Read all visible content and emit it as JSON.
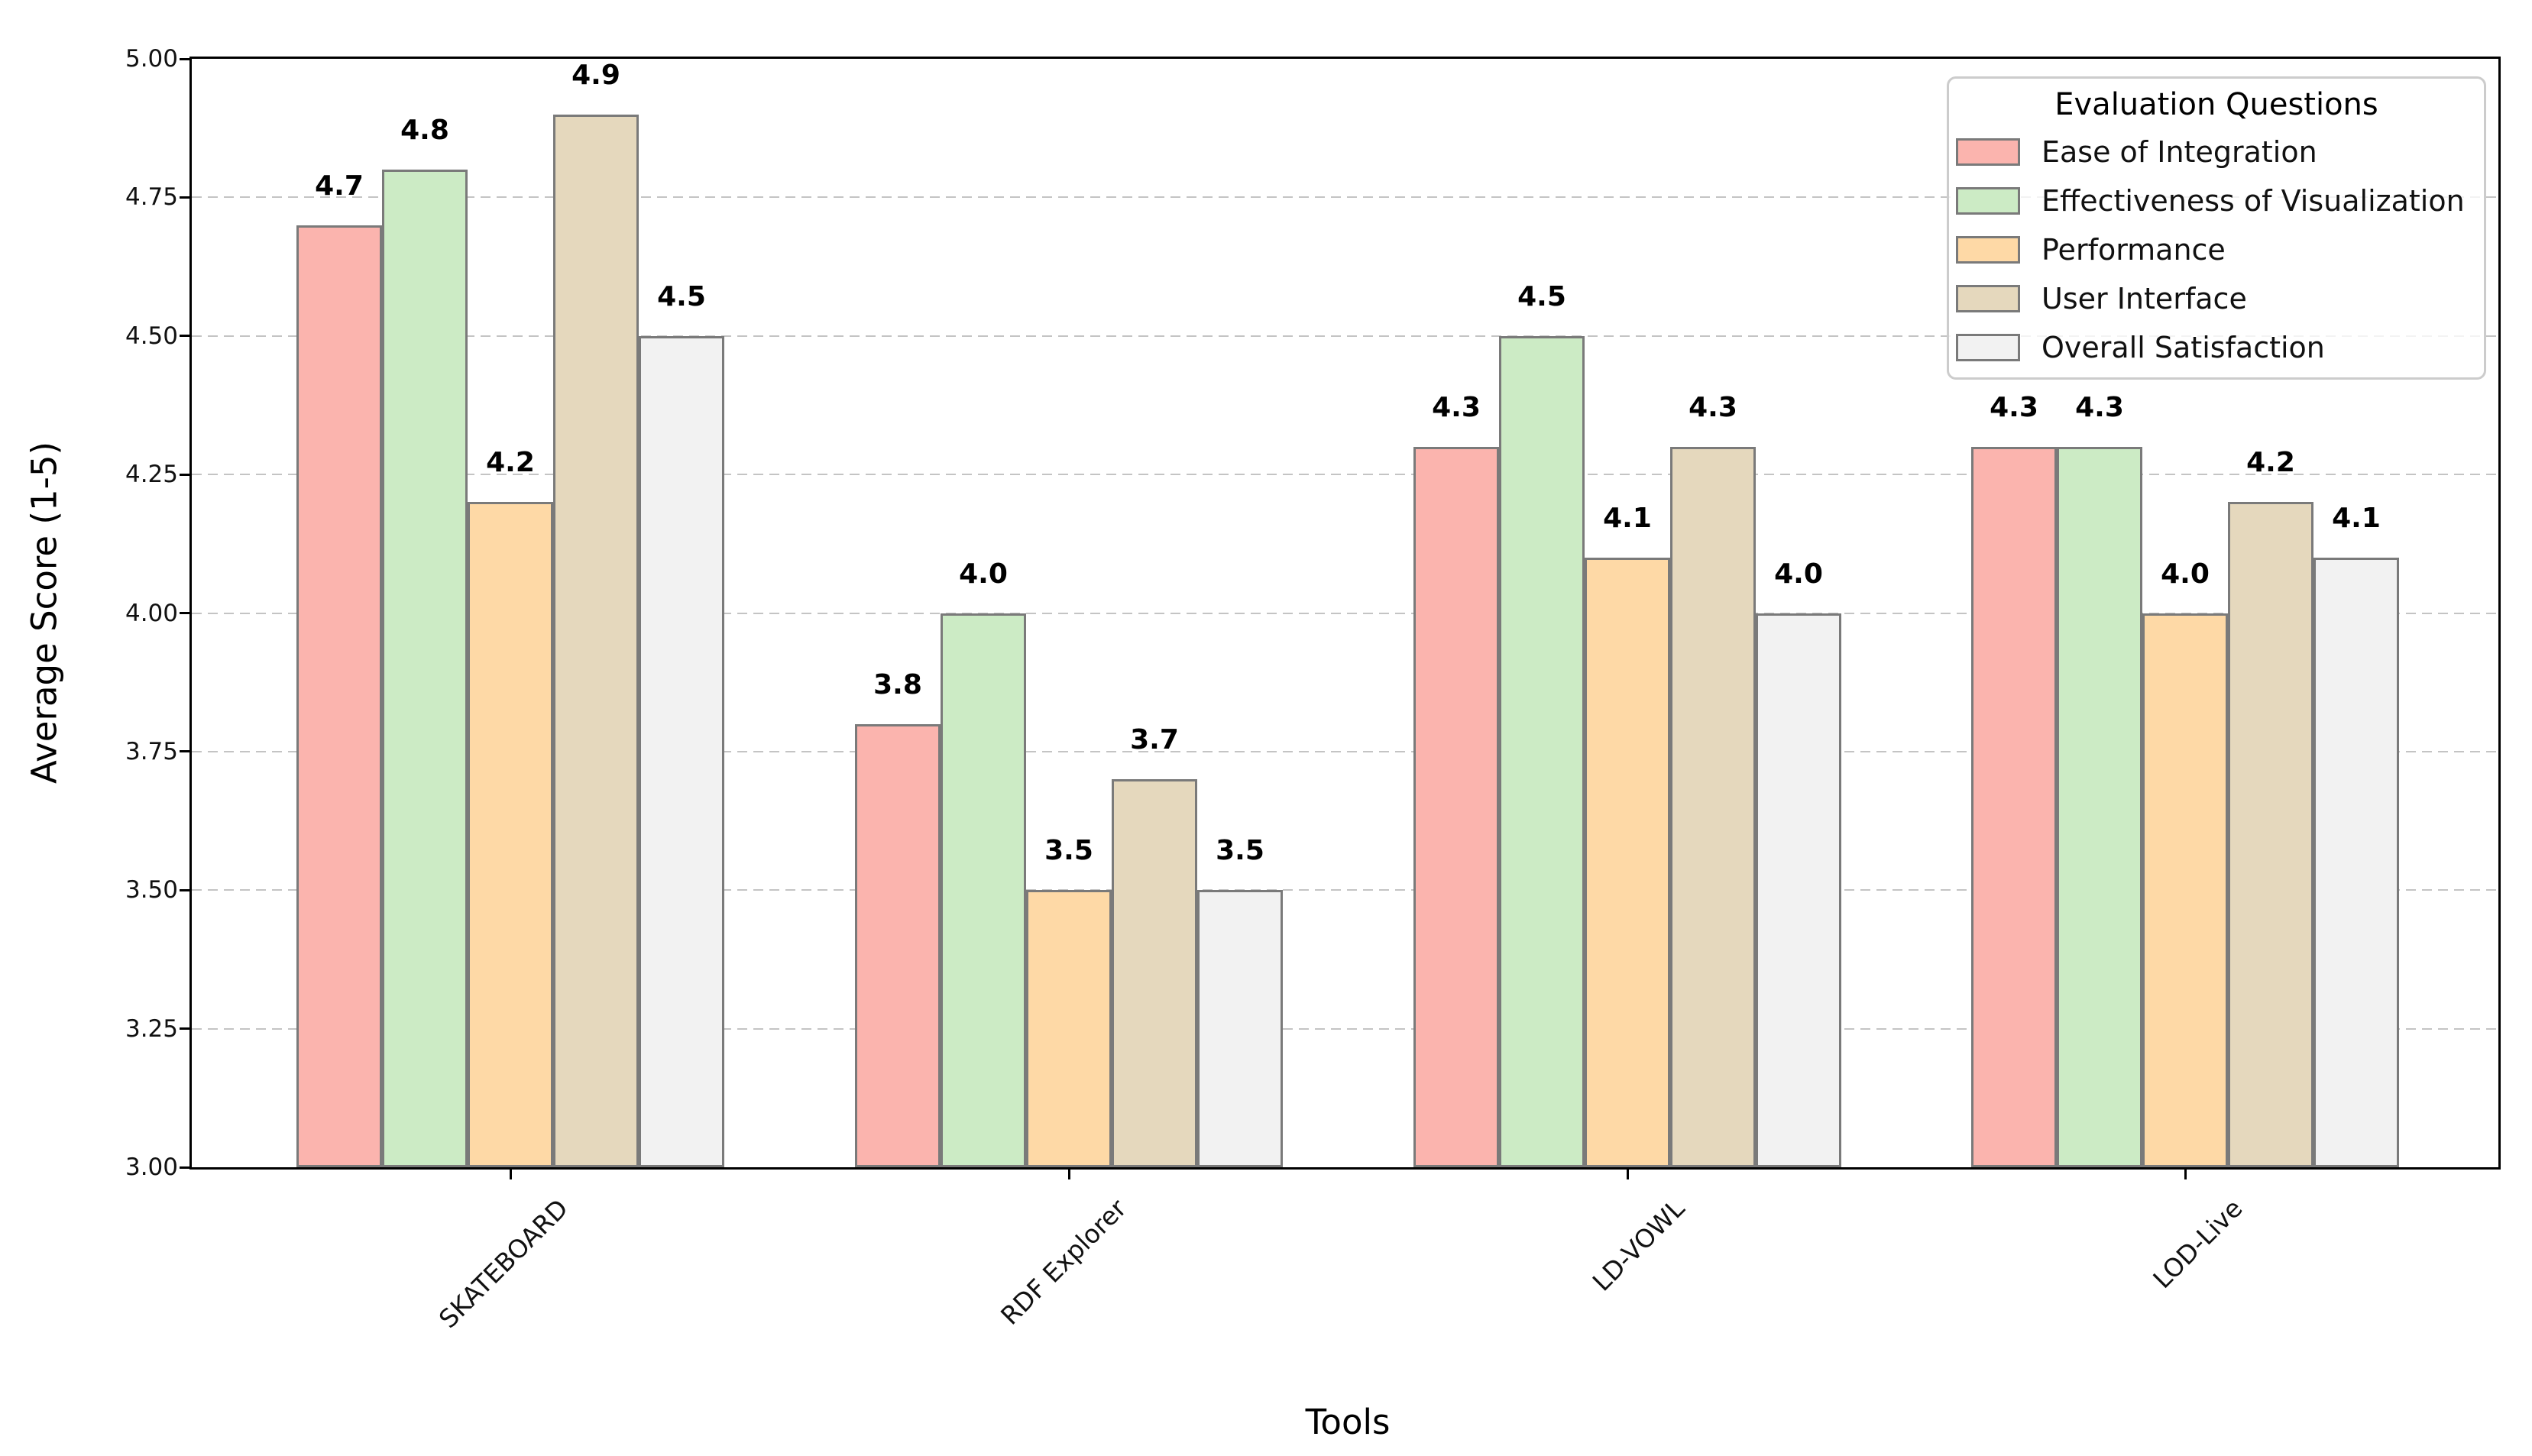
{
  "axes": {
    "x_label": "Tools",
    "y_label": "Average Score (1-5)",
    "y_ticks": [
      "3.00",
      "3.25",
      "3.50",
      "3.75",
      "4.00",
      "4.25",
      "4.50",
      "4.75",
      "5.00"
    ]
  },
  "chart_data": {
    "type": "bar",
    "title": "",
    "xlabel": "Tools",
    "ylabel": "Average Score (1-5)",
    "categories": [
      "SKATEBOARD",
      "RDF Explorer",
      "LD-VOWL",
      "LOD-Live"
    ],
    "series": [
      {
        "name": "Ease of Integration",
        "color": "#fbb4ae",
        "values": [
          4.7,
          3.8,
          4.3,
          4.3
        ]
      },
      {
        "name": "Effectiveness of Visualization",
        "color": "#ccebc5",
        "values": [
          4.8,
          4.0,
          4.5,
          4.3
        ]
      },
      {
        "name": "Performance",
        "color": "#fed9a6",
        "values": [
          4.2,
          3.5,
          4.1,
          4.0
        ]
      },
      {
        "name": "User Interface",
        "color": "#e5d8bd",
        "values": [
          4.9,
          3.7,
          4.3,
          4.2
        ]
      },
      {
        "name": "Overall Satisfaction",
        "color": "#f2f2f2",
        "values": [
          4.5,
          3.5,
          4.0,
          4.1
        ]
      }
    ],
    "ylim": [
      3.0,
      5.0
    ],
    "ytick_step": 0.25,
    "grid": {
      "axis": "y",
      "style": "dashed",
      "color": "#c4c4c4"
    },
    "bar_edge_color": "#7a7a7a",
    "value_labels": true,
    "legend": {
      "title": "Evaluation Questions",
      "position": "upper right"
    }
  }
}
